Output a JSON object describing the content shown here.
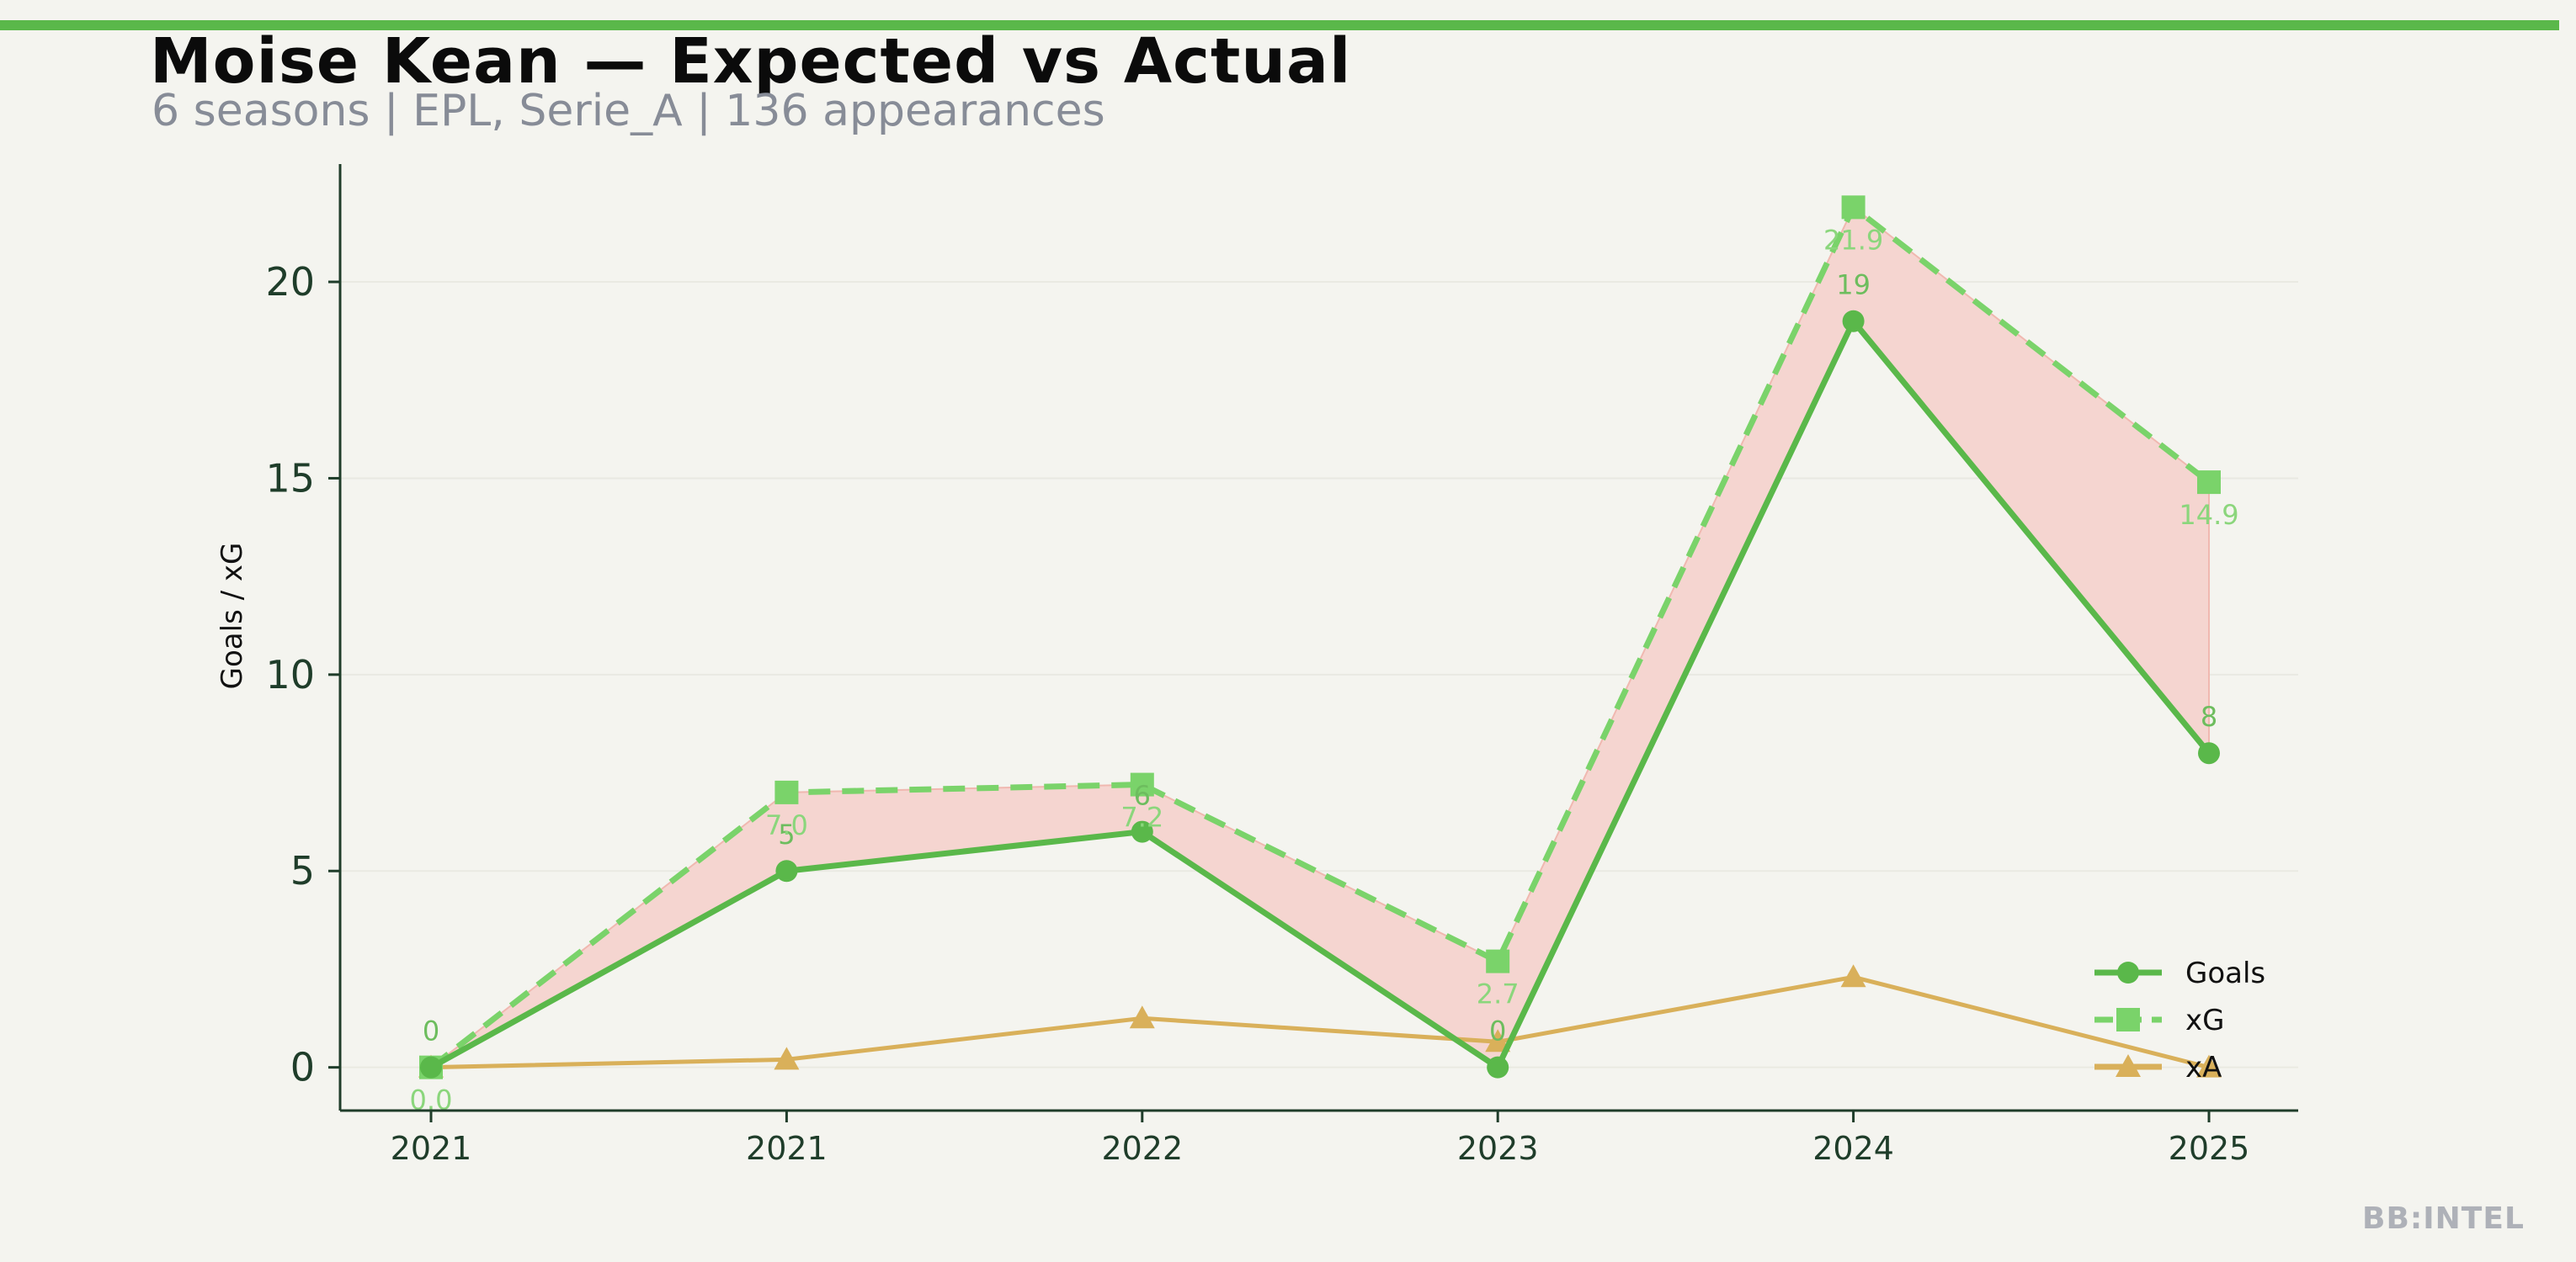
{
  "header": {
    "title": "Moise Kean — Expected vs Actual",
    "subtitle": "6 seasons | EPL, Serie_A | 136 appearances"
  },
  "watermark": "BB:INTEL",
  "colors": {
    "accent": "#5ab84a",
    "goals": "#5ab84a",
    "xg": "#7ad36a",
    "xa": "#d9b05a",
    "gap_fill": "#f5d5d0",
    "axis": "#1f3d2a",
    "background": "#f4f4ef"
  },
  "chart_data": {
    "type": "line",
    "title": "Moise Kean — Expected vs Actual",
    "ylabel": "Goals / xG",
    "xlabel": "",
    "categories": [
      "2021",
      "2021",
      "2022",
      "2023",
      "2024",
      "2025"
    ],
    "yticks": [
      0,
      5,
      10,
      15,
      20
    ],
    "ylim": [
      -1.1,
      23.0
    ],
    "grid": true,
    "legend_position": "bottom-right",
    "shaded_region": "between Goals and xG",
    "series": [
      {
        "name": "Goals",
        "key": "goals",
        "values": [
          0,
          5,
          6,
          0,
          19,
          8
        ],
        "labels": [
          "0",
          "5",
          "6",
          "0",
          "19",
          "8"
        ],
        "marker": "circle",
        "dash": "solid"
      },
      {
        "name": "xG",
        "key": "xg",
        "values": [
          0.0,
          7.0,
          7.2,
          2.7,
          21.9,
          14.9
        ],
        "labels": [
          "0.0",
          "7.0",
          "7.2",
          "2.7",
          "21.9",
          "14.9"
        ],
        "marker": "square",
        "dash": "dashed"
      },
      {
        "name": "xA",
        "key": "xa",
        "values": [
          0.0,
          0.2,
          1.25,
          0.65,
          2.3,
          0.0
        ],
        "marker": "triangle",
        "dash": "solid"
      }
    ]
  }
}
